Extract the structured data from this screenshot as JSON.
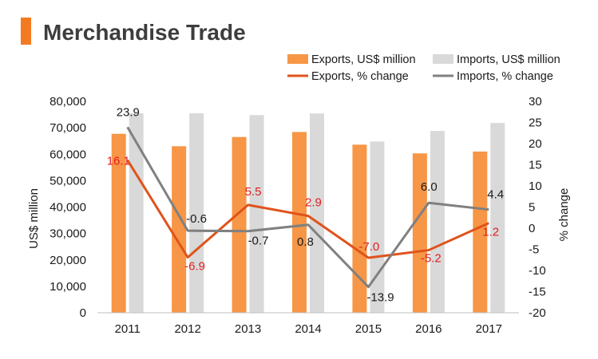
{
  "title": "Merchandise Trade",
  "colors": {
    "accent": "#f47a21",
    "exports_bar": "#f79646",
    "imports_bar": "#d9d9d9",
    "exports_line": "#e0531b",
    "imports_line": "#808080",
    "exports_label": "#e02020",
    "imports_label": "#1a1a1a",
    "axis_text": "#1a1a1a"
  },
  "chart_data": {
    "type": "bar",
    "categories": [
      "2011",
      "2012",
      "2013",
      "2014",
      "2015",
      "2016",
      "2017"
    ],
    "ylabel": "US$ million",
    "y2label": "% change",
    "ylim": [
      0,
      80000
    ],
    "y2lim": [
      -20,
      30
    ],
    "yticks": [
      "0",
      "10,000",
      "20,000",
      "30,000",
      "40,000",
      "50,000",
      "60,000",
      "70,000",
      "80,000"
    ],
    "y2ticks": [
      "-20",
      "-15",
      "-10",
      "-5",
      "0",
      "5",
      "10",
      "15",
      "20",
      "25",
      "30"
    ],
    "legend_position": "top-right",
    "series": [
      {
        "name": "Exports, US$ million",
        "kind": "bar",
        "axis": "left",
        "values": [
          67700,
          63000,
          66500,
          68400,
          63600,
          60300,
          61000
        ]
      },
      {
        "name": "Imports, US$ million",
        "kind": "bar",
        "axis": "left",
        "values": [
          75500,
          75500,
          74800,
          75400,
          64800,
          68800,
          71800
        ]
      },
      {
        "name": "Exports, % change",
        "kind": "line",
        "axis": "right",
        "values": [
          16.1,
          -6.9,
          5.5,
          2.9,
          -7.0,
          -5.2,
          1.2
        ],
        "labels": [
          "16.1",
          "-6.9",
          "5.5",
          "2.9",
          "-7.0",
          "-5.2",
          "1.2"
        ]
      },
      {
        "name": "Imports, % change",
        "kind": "line",
        "axis": "right",
        "values": [
          23.9,
          -0.6,
          -0.7,
          0.8,
          -13.9,
          6.0,
          4.4
        ],
        "labels": [
          "23.9",
          "-0.6",
          "-0.7",
          "0.8",
          "-13.9",
          "6.0",
          "4.4"
        ]
      }
    ]
  }
}
